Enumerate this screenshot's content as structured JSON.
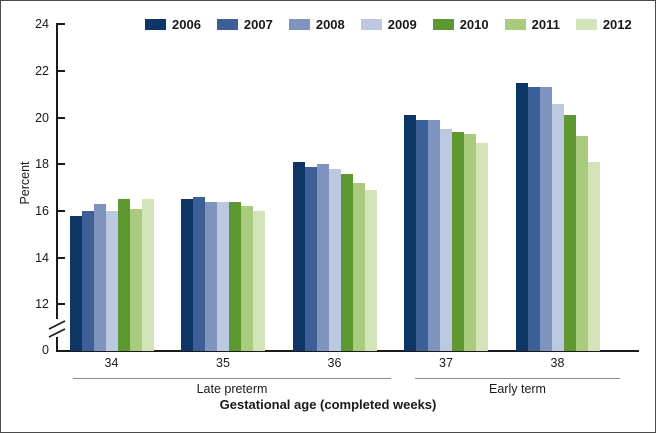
{
  "chart_data": {
    "type": "bar",
    "title": "",
    "categories": [
      "34",
      "35",
      "36",
      "37",
      "38"
    ],
    "series": [
      {
        "name": "2006",
        "color": "#0d3566",
        "values": [
          15.8,
          16.5,
          18.1,
          20.1,
          21.5
        ]
      },
      {
        "name": "2007",
        "color": "#3c6095",
        "values": [
          16.0,
          16.6,
          17.9,
          19.9,
          21.3
        ]
      },
      {
        "name": "2008",
        "color": "#7e94be",
        "values": [
          16.3,
          16.4,
          18.0,
          19.9,
          21.3
        ]
      },
      {
        "name": "2009",
        "color": "#bcc7e0",
        "values": [
          16.0,
          16.4,
          17.8,
          19.5,
          20.6
        ]
      },
      {
        "name": "2010",
        "color": "#5d9732",
        "values": [
          16.5,
          16.4,
          17.6,
          19.4,
          20.1
        ]
      },
      {
        "name": "2011",
        "color": "#aaca7e",
        "values": [
          16.1,
          16.2,
          17.2,
          19.3,
          19.2
        ]
      },
      {
        "name": "2012",
        "color": "#d2e4b8",
        "values": [
          16.5,
          16.0,
          16.9,
          18.9,
          18.1
        ]
      }
    ],
    "group_labels": [
      {
        "label": "Late preterm",
        "categories": [
          "34",
          "35",
          "36"
        ]
      },
      {
        "label": "Early term",
        "categories": [
          "37",
          "38"
        ]
      }
    ],
    "xlabel": "Gestational age (completed weeks)",
    "ylabel": "Percent",
    "yticks": [
      0,
      12,
      14,
      16,
      18,
      20,
      22,
      24
    ],
    "ylim": [
      0,
      24
    ],
    "axis_break_between": [
      0,
      12
    ],
    "legend_position": "top",
    "grid": false
  }
}
